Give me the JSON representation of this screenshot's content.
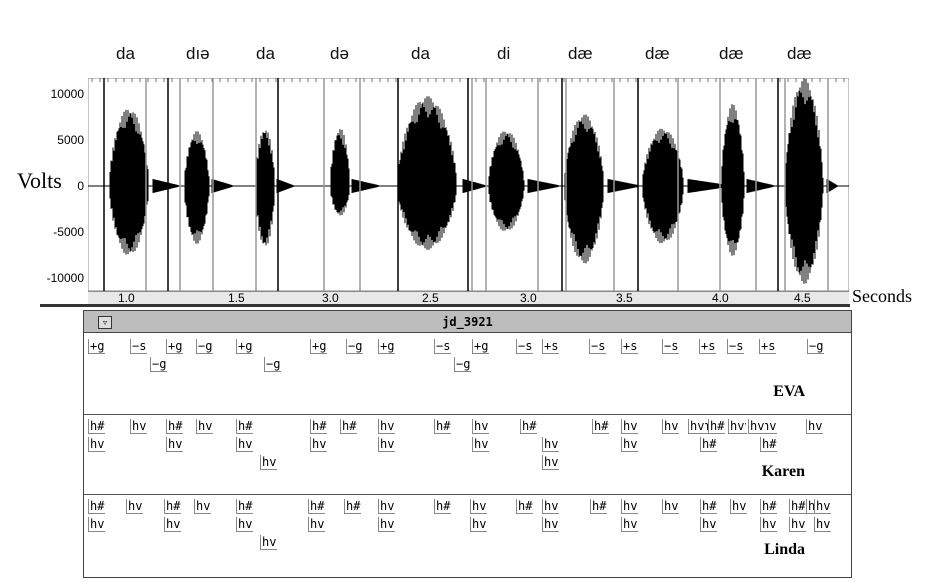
{
  "syllables": [
    "da",
    "dıə",
    "da",
    "də",
    "da",
    "di",
    "dæ",
    "dæ",
    "dæ",
    "dæ"
  ],
  "y_axis_label": "Volts",
  "x_axis_unit": "Seconds",
  "y_ticks": [
    "10000",
    "5000",
    "0",
    "-5000",
    "-10000"
  ],
  "x_ticks": [
    "1.0",
    "1.5",
    "3.0",
    "2.5",
    "3.0",
    "3.5",
    "4.0",
    "4.5"
  ],
  "window": {
    "title": "jd_3921",
    "menu_symbol": "▿"
  },
  "tiers": [
    {
      "name": "EVA",
      "labels": [
        "+g",
        "−s",
        "+g",
        "−g",
        "+g",
        "−g",
        "−g",
        "+g",
        "−g",
        "+g",
        "−s",
        "+g",
        "−g",
        "−s",
        "+s",
        "−s",
        "+s",
        "−s",
        "+s",
        "−s",
        "+s",
        "−g"
      ]
    },
    {
      "name": "Karen",
      "labels": [
        "h#",
        "hv",
        "hv",
        "h#",
        "hv",
        "hv",
        "h#",
        "hv",
        "hv",
        "h#",
        "hv",
        "h#",
        "hv",
        "hv",
        "h#",
        "hv",
        "hv",
        "h#",
        "hv",
        "hv",
        "h#",
        "hv",
        "hv",
        "hv",
        "hv",
        "h#",
        "hv",
        "hv",
        "h#",
        "hv",
        "hv",
        "h#",
        "hv",
        "hv"
      ]
    },
    {
      "name": "Linda",
      "labels": [
        "h#",
        "hv",
        "hv",
        "h#",
        "hv",
        "hv",
        "h#",
        "hv",
        "hv",
        "h#",
        "hv",
        "h#",
        "hv",
        "hv",
        "h#",
        "hv",
        "hv",
        "h#",
        "hv",
        "hv",
        "h#",
        "hv",
        "hv",
        "hv",
        "h#",
        "hv",
        "hv",
        "h#",
        "hv",
        "hv",
        "h#",
        "hv",
        "hv",
        "h#",
        "hv",
        "hv"
      ]
    }
  ]
}
